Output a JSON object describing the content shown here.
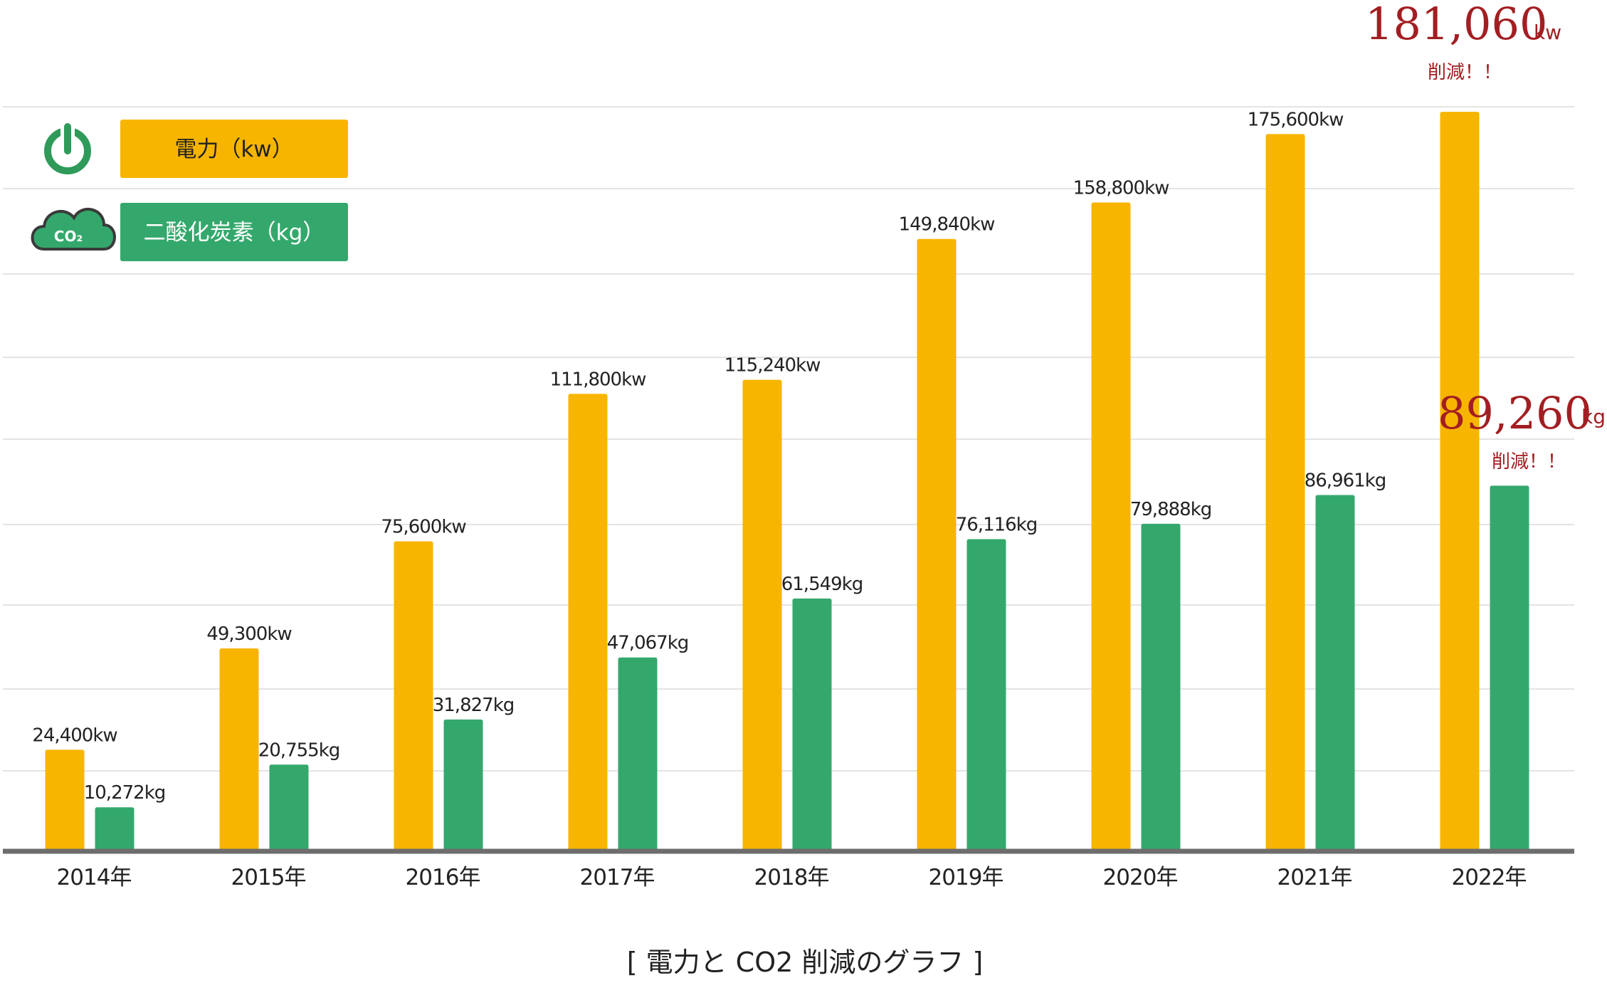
{
  "chart_data": {
    "type": "bar",
    "title": "[ 電力と CO2 削減のグラフ ]",
    "categories": [
      "2014年",
      "2015年",
      "2016年",
      "2017年",
      "2018年",
      "2019年",
      "2020年",
      "2021年",
      "2022年"
    ],
    "series": [
      {
        "name": "電力（kw）",
        "color": "#f7b500",
        "values": [
          24400,
          49300,
          75600,
          111800,
          115240,
          149840,
          158800,
          175600,
          181060
        ],
        "labels": [
          "24,400kw",
          "49,300kw",
          "75,600kw",
          "111,800kw",
          "115,240kw",
          "149,840kw",
          "158,800kw",
          "175,600kw",
          ""
        ]
      },
      {
        "name": "二酸化炭素（kg）",
        "color": "#34a86c",
        "values": [
          10272,
          20755,
          31827,
          47067,
          61549,
          76116,
          79888,
          86961,
          89260
        ],
        "labels": [
          "10,272kg",
          "20,755kg",
          "31,827kg",
          "47,067kg",
          "61,549kg",
          "76,116kg",
          "79,888kg",
          "86,961kg",
          ""
        ]
      }
    ],
    "ylim": [
      0,
      183000
    ],
    "grid": true,
    "legend": "top-left",
    "highlights": {
      "power": {
        "value": "181,060",
        "unit": "kw",
        "note": "削減！！"
      },
      "co2": {
        "value": "89,260",
        "unit": "kg",
        "note": "削減！！"
      }
    },
    "accent_color": "#a31e22"
  },
  "legend_icons": [
    "power-icon",
    "co2-cloud-icon"
  ],
  "co2_icon_text": "CO₂"
}
